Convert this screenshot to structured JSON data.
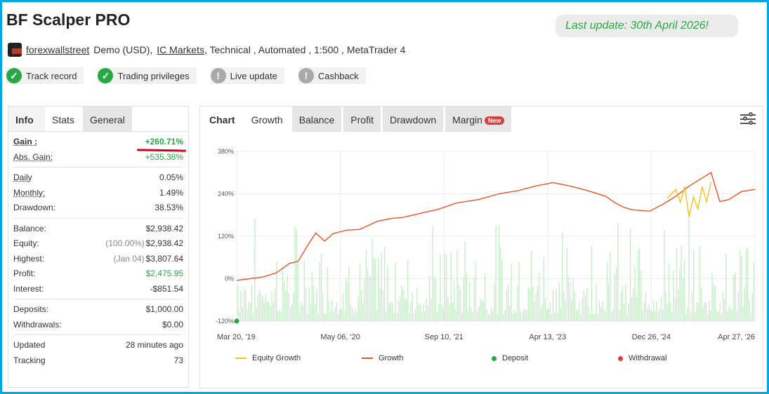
{
  "page": {
    "title": "BF Scalper PRO",
    "last_update": "Last update: 30th April 2026!",
    "meta": {
      "user": "forexwallstreet",
      "account": "Demo (USD),",
      "broker": "IC Markets",
      "rest": ", Technical , Automated , 1:500 , MetaTrader 4"
    },
    "badges": [
      {
        "label": "Track record",
        "status": "verified"
      },
      {
        "label": "Trading privileges",
        "status": "verified"
      },
      {
        "label": "Live update",
        "status": "unverified"
      },
      {
        "label": "Cashback",
        "status": "unverified"
      }
    ]
  },
  "left_panel": {
    "tabs": [
      "Info",
      "Stats",
      "General"
    ],
    "stats": {
      "gain": {
        "label": "Gain :",
        "value": "+260.71%"
      },
      "abs_gain": {
        "label": "Abs. Gain:",
        "value": "+535.38%"
      },
      "daily": {
        "label": "Daily",
        "value": "0.05%"
      },
      "monthly": {
        "label": "Monthly:",
        "value": "1.49%"
      },
      "drawdown": {
        "label": "Drawdown:",
        "value": "38.53%"
      },
      "balance": {
        "label": "Balance:",
        "value": "$2,938.42"
      },
      "equity": {
        "label": "Equity:",
        "pct": "(100.00%)",
        "value": "$2,938.42"
      },
      "highest": {
        "label": "Highest:",
        "date": "(Jan 04)",
        "value": "$3,807.64"
      },
      "profit": {
        "label": "Profit:",
        "value": "$2,475.95"
      },
      "interest": {
        "label": "Interest:",
        "value": "-$851.54"
      },
      "deposits": {
        "label": "Deposits:",
        "value": "$1,000.00"
      },
      "withdrawals": {
        "label": "Withdrawals:",
        "value": "$0.00"
      },
      "updated": {
        "label": "Updated",
        "value": "28 minutes ago"
      },
      "tracking": {
        "label": "Tracking",
        "value": "73"
      }
    }
  },
  "right_panel": {
    "tabs": [
      "Chart",
      "Growth",
      "Balance",
      "Profit",
      "Drawdown",
      "Margin"
    ],
    "new_badge": "New",
    "active_tab": "Growth"
  },
  "chart_data": {
    "type": "line",
    "y_ticks": [
      "380%",
      "240%",
      "120%",
      "0%",
      "-120%"
    ],
    "ylim": [
      -120,
      380
    ],
    "x_ticks": [
      "Mar 20, '19",
      "May 06, '20",
      "Sep 10, '21",
      "Apr 13, '23",
      "Dec 26, '24",
      "Apr 27, '26"
    ],
    "series": [
      {
        "name": "Growth",
        "color": "#e8542a",
        "points": [
          [
            0,
            0
          ],
          [
            3,
            5
          ],
          [
            6,
            10
          ],
          [
            9,
            22
          ],
          [
            12,
            50
          ],
          [
            14,
            56
          ],
          [
            16,
            100
          ],
          [
            18,
            140
          ],
          [
            20,
            116
          ],
          [
            22,
            138
          ],
          [
            25,
            148
          ],
          [
            28,
            150
          ],
          [
            32,
            174
          ],
          [
            35,
            182
          ],
          [
            38,
            186
          ],
          [
            42,
            198
          ],
          [
            46,
            210
          ],
          [
            50,
            228
          ],
          [
            55,
            238
          ],
          [
            60,
            256
          ],
          [
            64,
            264
          ],
          [
            68,
            278
          ],
          [
            72,
            288
          ],
          [
            76,
            278
          ],
          [
            80,
            264
          ],
          [
            84,
            248
          ],
          [
            86,
            230
          ],
          [
            88,
            216
          ],
          [
            90,
            208
          ],
          [
            94,
            204
          ],
          [
            97,
            224
          ],
          [
            100,
            248
          ],
          [
            103,
            278
          ],
          [
            106,
            302
          ],
          [
            108,
            318
          ],
          [
            110,
            232
          ],
          [
            112,
            238
          ],
          [
            115,
            262
          ],
          [
            118,
            268
          ]
        ]
      },
      {
        "name": "Equity Growth",
        "color": "#f0c419",
        "points": [
          [
            98,
            242
          ],
          [
            100,
            268
          ],
          [
            101,
            230
          ],
          [
            102,
            276
          ],
          [
            103,
            188
          ],
          [
            104,
            246
          ],
          [
            105,
            210
          ],
          [
            106,
            276
          ],
          [
            107,
            232
          ],
          [
            108,
            290
          ]
        ]
      }
    ],
    "markers": [
      {
        "name": "Deposit",
        "x_pos": 0,
        "y": -120,
        "color": "#2aa744"
      }
    ],
    "legend": [
      {
        "name": "Equity Growth",
        "color": "#f0c419",
        "kind": "line"
      },
      {
        "name": "Growth",
        "color": "#e8542a",
        "kind": "line"
      },
      {
        "name": "Deposit",
        "color": "#2aa744",
        "kind": "dot"
      },
      {
        "name": "Withdrawal",
        "color": "#e03c3c",
        "kind": "dot"
      }
    ]
  }
}
